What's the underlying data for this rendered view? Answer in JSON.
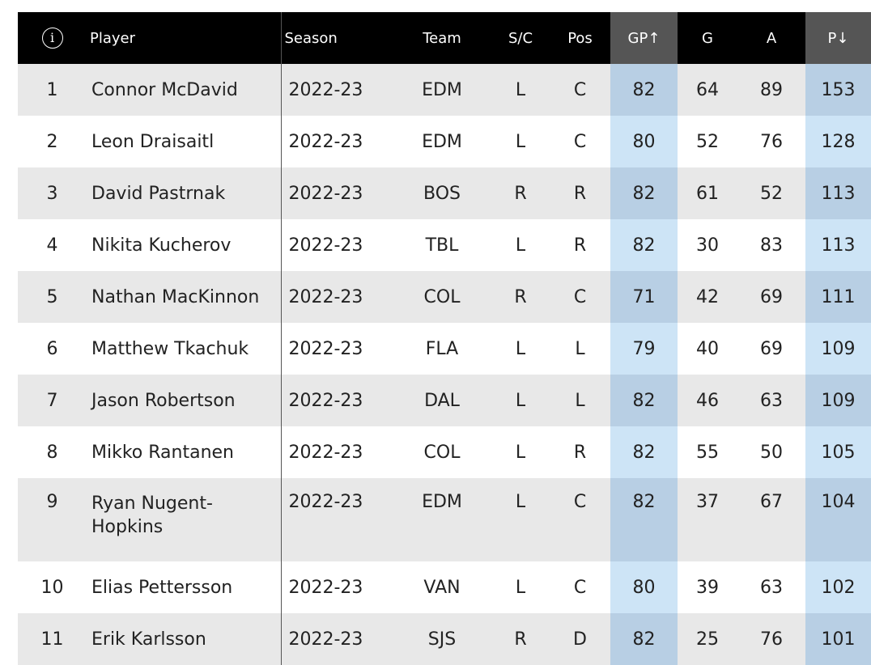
{
  "table": {
    "headers": {
      "info_glyph": "i",
      "player": "Player",
      "season": "Season",
      "team": "Team",
      "sc": "S/C",
      "pos": "Pos",
      "gp": "GP↑",
      "g": "G",
      "a": "A",
      "p": "P↓"
    },
    "rows": [
      {
        "rank": "1",
        "player": "Connor McDavid",
        "season": "2022-23",
        "team": "EDM",
        "sc": "L",
        "pos": "C",
        "gp": "82",
        "g": "64",
        "a": "89",
        "p": "153"
      },
      {
        "rank": "2",
        "player": "Leon Draisaitl",
        "season": "2022-23",
        "team": "EDM",
        "sc": "L",
        "pos": "C",
        "gp": "80",
        "g": "52",
        "a": "76",
        "p": "128"
      },
      {
        "rank": "3",
        "player": "David Pastrnak",
        "season": "2022-23",
        "team": "BOS",
        "sc": "R",
        "pos": "R",
        "gp": "82",
        "g": "61",
        "a": "52",
        "p": "113"
      },
      {
        "rank": "4",
        "player": "Nikita Kucherov",
        "season": "2022-23",
        "team": "TBL",
        "sc": "L",
        "pos": "R",
        "gp": "82",
        "g": "30",
        "a": "83",
        "p": "113"
      },
      {
        "rank": "5",
        "player": "Nathan MacKinnon",
        "season": "2022-23",
        "team": "COL",
        "sc": "R",
        "pos": "C",
        "gp": "71",
        "g": "42",
        "a": "69",
        "p": "111"
      },
      {
        "rank": "6",
        "player": "Matthew Tkachuk",
        "season": "2022-23",
        "team": "FLA",
        "sc": "L",
        "pos": "L",
        "gp": "79",
        "g": "40",
        "a": "69",
        "p": "109"
      },
      {
        "rank": "7",
        "player": "Jason Robertson",
        "season": "2022-23",
        "team": "DAL",
        "sc": "L",
        "pos": "L",
        "gp": "82",
        "g": "46",
        "a": "63",
        "p": "109"
      },
      {
        "rank": "8",
        "player": "Mikko Rantanen",
        "season": "2022-23",
        "team": "COL",
        "sc": "L",
        "pos": "R",
        "gp": "82",
        "g": "55",
        "a": "50",
        "p": "105"
      },
      {
        "rank": "9",
        "player": "Ryan Nugent-Hopkins",
        "season": "2022-23",
        "team": "EDM",
        "sc": "L",
        "pos": "C",
        "gp": "82",
        "g": "37",
        "a": "67",
        "p": "104"
      },
      {
        "rank": "10",
        "player": "Elias Pettersson",
        "season": "2022-23",
        "team": "VAN",
        "sc": "L",
        "pos": "C",
        "gp": "80",
        "g": "39",
        "a": "63",
        "p": "102"
      },
      {
        "rank": "11",
        "player": "Erik Karlsson",
        "season": "2022-23",
        "team": "SJS",
        "sc": "R",
        "pos": "D",
        "gp": "82",
        "g": "25",
        "a": "76",
        "p": "101"
      }
    ]
  },
  "colors": {
    "header_bg": "#000000",
    "sorted_header_bg": "#555555",
    "row_odd_bg": "#e8e8e8",
    "row_even_bg": "#ffffff",
    "sorted_col_odd_bg": "#b8cfe4",
    "sorted_col_even_bg": "#cde4f6"
  }
}
